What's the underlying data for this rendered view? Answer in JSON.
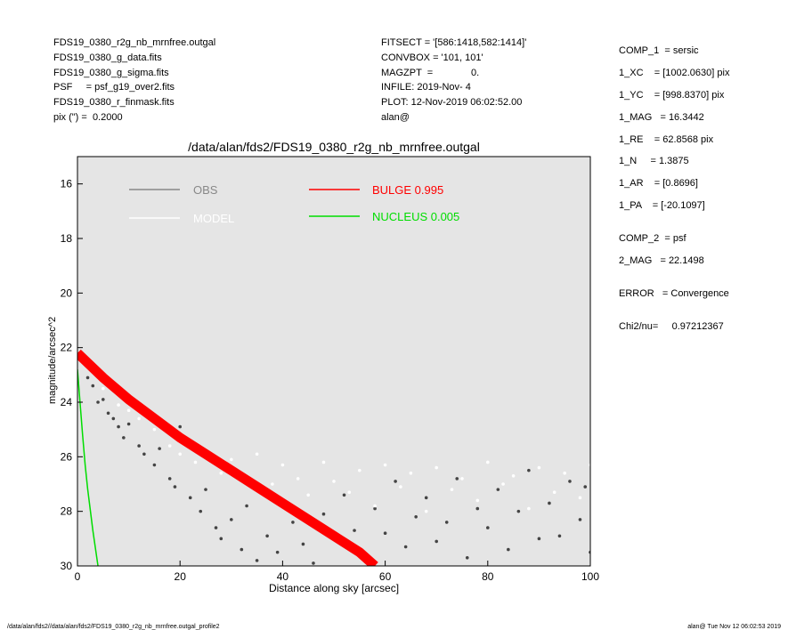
{
  "header": {
    "left": [
      "FDS19_0380_r2g_nb_mrnfree.outgal",
      "FDS19_0380_g_data.fits",
      "FDS19_0380_g_sigma.fits",
      "PSF     = psf_g19_over2.fits",
      "FDS19_0380_r_finmask.fits",
      "pix (\") =  0.2000"
    ],
    "middle": [
      "FITSECT = '[586:1418,582:1414]'",
      "CONVBOX = '101, 101'",
      "MAGZPT  =              0.",
      "INFILE: 2019-Nov- 4",
      "PLOT: 12-Nov-2019 06:02:52.00",
      "alan@"
    ],
    "right": [
      "COMP_1  = sersic",
      "1_XC    = [1002.0630] pix",
      "1_YC    = [998.8370] pix",
      "1_MAG   = 16.3442",
      "1_RE    = 62.8568 pix",
      "1_N     = 1.3875",
      "1_AR    = [0.8696]",
      "1_PA    = [-20.1097]",
      "COMP_2  = psf",
      "2_MAG   = 22.1498",
      "ERROR   = Convergence",
      "Chi2/nu=     0.97212367"
    ]
  },
  "footer": {
    "left": "/data/alan/fds2//data/alan/fds2/FDS19_0380_r2g_nb_mrnfree.outgal_profile2",
    "right": "alan@  Tue Nov 12 06:02:53 2019"
  },
  "chart_data": {
    "type": "scatter",
    "title": "/data/alan/fds2/FDS19_0380_r2g_nb_mrnfree.outgal",
    "x_label": "Distance along sky [arcsec]",
    "y_label": "magnitude/arcsec^2",
    "xlim": [
      0,
      100
    ],
    "xticks": [
      0,
      20,
      40,
      60,
      80,
      100
    ],
    "ylim": [
      30,
      15
    ],
    "yticks": [
      16,
      18,
      20,
      22,
      24,
      26,
      28,
      30
    ],
    "background": "#e5e5e5",
    "series": [
      {
        "name": "OBS",
        "color": "#444444",
        "legend_color": "#888888",
        "style": "points",
        "x": [
          1,
          2,
          3,
          4,
          5,
          6,
          7,
          8,
          9,
          10,
          12,
          13,
          15,
          16,
          18,
          19,
          20,
          22,
          24,
          25,
          27,
          28,
          30,
          32,
          33,
          35,
          37,
          39,
          40,
          42,
          44,
          46,
          48,
          50,
          52,
          54,
          56,
          58,
          60,
          62,
          64,
          66,
          68,
          70,
          72,
          74,
          76,
          78,
          80,
          82,
          84,
          86,
          88,
          90,
          92,
          94,
          96,
          98,
          99,
          100
        ],
        "values": [
          22.3,
          23.1,
          23.4,
          24.0,
          23.9,
          24.4,
          24.6,
          24.9,
          25.3,
          24.8,
          25.6,
          25.9,
          26.3,
          25.7,
          26.8,
          27.1,
          24.9,
          27.5,
          28.0,
          27.2,
          28.6,
          29.0,
          28.3,
          29.4,
          27.8,
          29.8,
          28.9,
          29.5,
          27.6,
          28.4,
          29.2,
          29.9,
          28.1,
          29.0,
          27.4,
          28.7,
          29.6,
          27.9,
          28.8,
          26.9,
          29.3,
          28.2,
          27.5,
          29.1,
          28.4,
          26.8,
          29.7,
          27.9,
          28.6,
          27.2,
          29.4,
          28.0,
          26.5,
          29.0,
          27.7,
          28.9,
          26.9,
          28.3,
          27.1,
          29.5
        ]
      },
      {
        "name": "MODEL",
        "color": "#ffffff",
        "legend_color": "#ffffff",
        "style": "points",
        "x": [
          2,
          5,
          8,
          10,
          12,
          15,
          18,
          20,
          23,
          25,
          28,
          30,
          33,
          35,
          38,
          40,
          43,
          45,
          48,
          50,
          53,
          55,
          58,
          60,
          63,
          65,
          68,
          70,
          73,
          75,
          78,
          80,
          83,
          85,
          88,
          90,
          93,
          95,
          98,
          100
        ],
        "values": [
          22.6,
          23.5,
          24.1,
          24.3,
          24.6,
          25.0,
          25.6,
          25.9,
          26.2,
          25.8,
          26.6,
          26.1,
          26.9,
          25.9,
          27.0,
          26.3,
          26.8,
          27.4,
          26.2,
          26.9,
          27.3,
          26.5,
          27.8,
          26.3,
          27.1,
          26.6,
          28.0,
          26.4,
          27.2,
          26.8,
          27.6,
          26.2,
          27.0,
          26.7,
          27.9,
          26.4,
          27.3,
          26.6,
          27.5,
          26.3
        ]
      },
      {
        "name": "BULGE  0.995",
        "color": "#ff0000",
        "legend_color": "#ff0000",
        "style": "band",
        "x": [
          0,
          5,
          10,
          15,
          20,
          25,
          30,
          35,
          40,
          45,
          50,
          55,
          58
        ],
        "values": [
          22.2,
          23.1,
          23.9,
          24.6,
          25.3,
          25.9,
          26.5,
          27.1,
          27.7,
          28.3,
          28.9,
          29.5,
          30
        ]
      },
      {
        "name": "NUCLEUS  0.005",
        "color": "#00dd00",
        "legend_color": "#00dd00",
        "style": "line",
        "x": [
          0,
          0.5,
          1,
          1.5,
          2,
          3,
          4
        ],
        "values": [
          22.8,
          24,
          25.2,
          26.3,
          27.2,
          28.7,
          30
        ]
      }
    ]
  }
}
